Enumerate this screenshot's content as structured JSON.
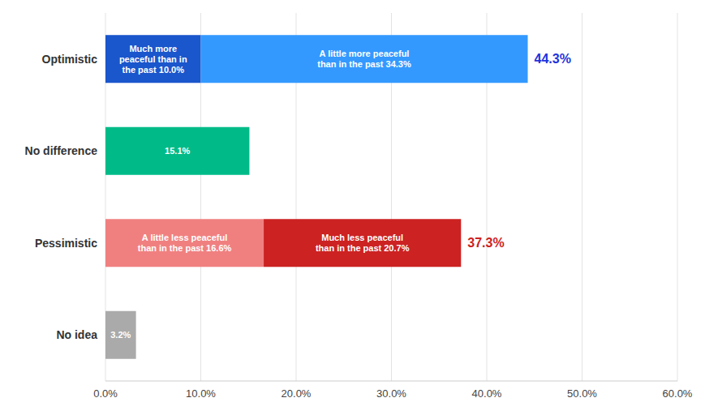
{
  "chart_data": {
    "type": "bar",
    "orientation": "horizontal",
    "stacked": true,
    "data_labels": true,
    "grid": true,
    "categories": [
      "Optimistic",
      "No difference",
      "Pessimistic",
      "No idea"
    ],
    "series": [
      {
        "values": [
          10.0,
          15.1,
          16.6,
          3.2
        ],
        "colors": [
          "#1a56cc",
          "#00bb88",
          "#f08080",
          "#aaaaaa"
        ],
        "value_labels": [
          "Much more\npeaceful than in\nthe past 10.0%",
          "15.1%",
          "A little less peaceful\nthan in the past 16.6%",
          "3.2%"
        ]
      },
      {
        "values": [
          34.3,
          null,
          20.7,
          null
        ],
        "colors": [
          "#3399ff",
          null,
          "#cc2222",
          null
        ],
        "value_labels": [
          "A little more peaceful\nthan in the past 34.3%",
          null,
          "Much less peaceful\nthan in the past 20.7%",
          null
        ]
      }
    ],
    "totals": {
      "values": [
        44.3,
        null,
        37.3,
        null
      ],
      "value_labels": [
        "44.3%",
        null,
        "37.3%",
        null
      ],
      "colors": [
        "#2233dd",
        null,
        "#cc2222",
        null
      ]
    },
    "xlim": [
      0,
      60
    ],
    "xticks": [
      {
        "value": 0,
        "label": "0.0%"
      },
      {
        "value": 10,
        "label": "10.0%"
      },
      {
        "value": 20,
        "label": "20.0%"
      },
      {
        "value": 30,
        "label": "30.0%"
      },
      {
        "value": 40,
        "label": "40.0%"
      },
      {
        "value": 50,
        "label": "50.0%"
      },
      {
        "value": 60,
        "label": "60.0%"
      }
    ]
  }
}
